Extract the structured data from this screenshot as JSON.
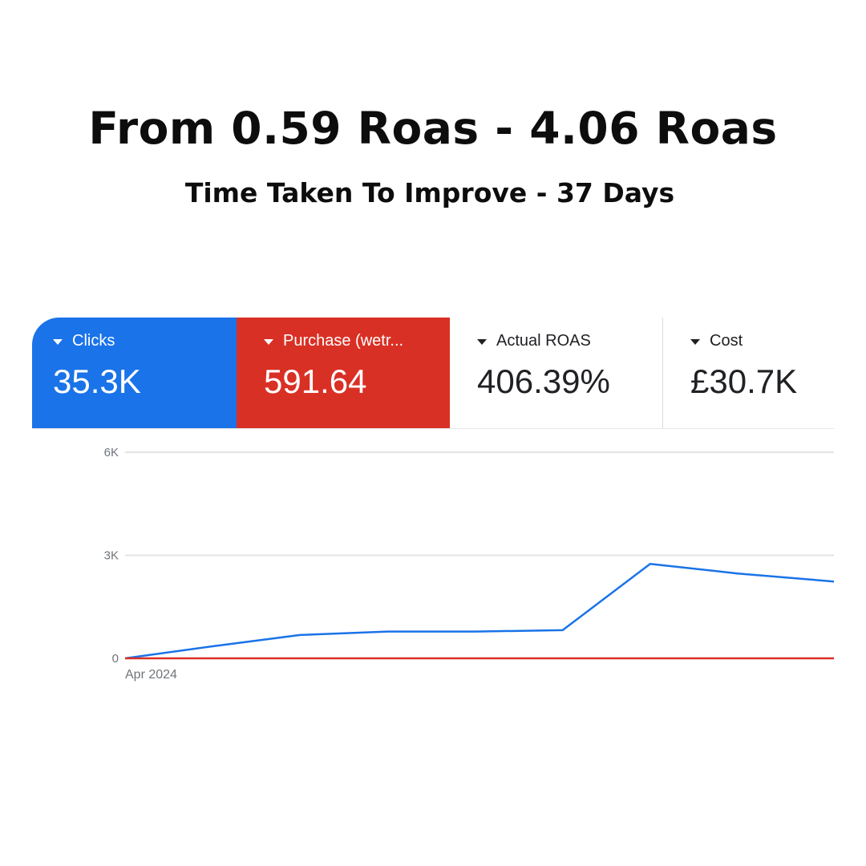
{
  "headline": "From 0.59 Roas - 4.06 Roas",
  "subline": "Time Taken To Improve - 37 Days",
  "metrics": {
    "clicks": {
      "label": "Clicks",
      "value": "35.3K",
      "color": "#1a73e8"
    },
    "purchase": {
      "label": "Purchase (wetr...",
      "value": "591.64",
      "color": "#d93025"
    },
    "roas": {
      "label": "Actual ROAS",
      "value": "406.39%"
    },
    "cost": {
      "label": "Cost",
      "value": "£30.7K"
    }
  },
  "chart_data": {
    "type": "line",
    "y_ticks": [
      "6K",
      "3K",
      "0"
    ],
    "ylim": [
      0,
      6000
    ],
    "x_start_label": "Apr 2024",
    "x": [
      0,
      1,
      2,
      3,
      4,
      5,
      6,
      7
    ],
    "xlim": [
      0,
      8.1
    ],
    "series": [
      {
        "name": "Clicks",
        "color": "#1a73e8",
        "values": [
          0,
          350,
          680,
          780,
          780,
          820,
          2750,
          2470
        ]
      },
      {
        "name": "Purchase (wetr...",
        "color": "#d93025",
        "values": [
          0,
          0,
          0,
          0,
          0,
          0,
          0,
          0
        ]
      }
    ],
    "grid": true
  }
}
